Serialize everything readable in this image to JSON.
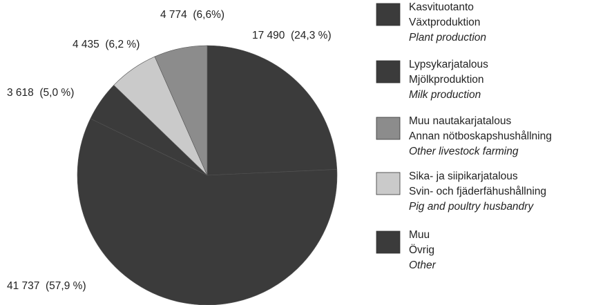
{
  "chart_data": {
    "type": "pie",
    "values": [
      17490,
      41737,
      3618,
      4435,
      4774
    ],
    "value_labels": [
      "17 490  (24,3 %)",
      "41 737  (57,9 %)",
      "3 618  (5,0 %)",
      "4 435  (6,2 %)",
      "4 774  (6,6%)"
    ],
    "colors": [
      "#3b3b3b",
      "#3b3b3b",
      "#3b3b3b",
      "#cacaca",
      "#8c8c8c"
    ],
    "legend": [
      {
        "lines": [
          "Kasvituotanto",
          "Växtproduktion",
          "Plant production"
        ],
        "color": "#3b3b3b"
      },
      {
        "lines": [
          "Lypsykarjatalous",
          "Mjölkproduktion",
          "Milk production"
        ],
        "color": "#3b3b3b"
      },
      {
        "lines": [
          "Muu nautakarjatalous",
          "Annan nötboskapshushållning",
          "Other livestock farming"
        ],
        "color": "#8c8c8c"
      },
      {
        "lines": [
          "Sika- ja siipikarjatalous",
          "Svin- och fjäderfähushållning",
          "Pig and poultry husbandry"
        ],
        "color": "#cacaca"
      },
      {
        "lines": [
          "Muu",
          "Övrig",
          "Other"
        ],
        "color": "#3b3b3b"
      }
    ]
  }
}
